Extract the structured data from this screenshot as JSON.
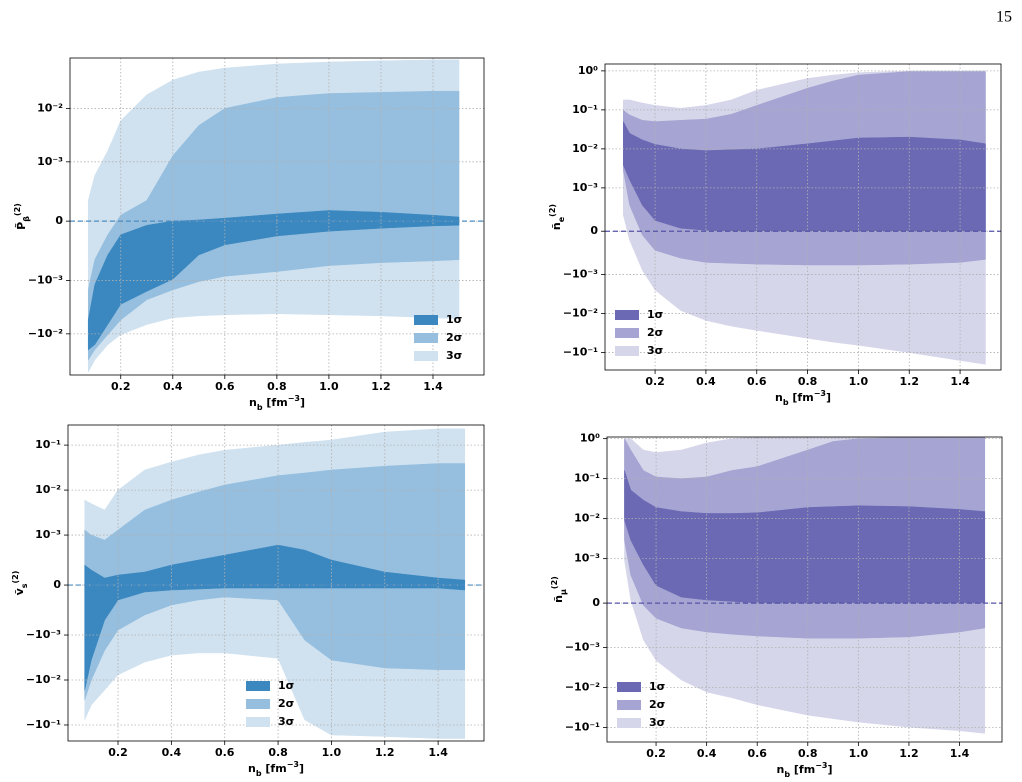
{
  "page_number": "15",
  "chart_data": [
    {
      "type": "band",
      "ylabel": [
        {
          "t": "P̃"
        },
        {
          "t": "β",
          "pos": "sub"
        },
        {
          "t": "(2)",
          "pos": "sup"
        }
      ],
      "xlabel": [
        {
          "t": "n"
        },
        {
          "t": "b",
          "pos": "sub"
        },
        {
          "t": " [fm"
        },
        {
          "t": "−3",
          "pos": "sup"
        },
        {
          "t": "]"
        }
      ],
      "x": [
        0.075,
        0.1,
        0.15,
        0.2,
        0.3,
        0.4,
        0.5,
        0.6,
        0.8,
        0.9,
        1.0,
        1.2,
        1.4,
        1.5
      ],
      "series": [
        {
          "name": "3σ",
          "color": "#d0e2f0",
          "upper": [
            0.00035,
            0.00077,
            0.0016,
            0.0059,
            0.018,
            0.034,
            0.048,
            0.057,
            0.068,
            0.071,
            0.074,
            0.078,
            0.081,
            0.081
          ],
          "lower": [
            -0.052,
            -0.031,
            -0.016,
            -0.0104,
            -0.0067,
            -0.005,
            -0.0046,
            -0.0044,
            -0.0042,
            -0.0043,
            -0.0044,
            -0.0046,
            -0.005,
            -0.0052
          ]
        },
        {
          "name": "2σ",
          "color": "#96bfdf",
          "upper": [
            -0.0015,
            -0.00065,
            -0.00023,
            0.0001,
            0.00035,
            0.0013,
            0.0048,
            0.01,
            0.016,
            0.0175,
            0.019,
            0.02,
            0.021,
            0.021
          ],
          "lower": [
            -0.031,
            -0.02,
            -0.0104,
            -0.0055,
            -0.0023,
            -0.0015,
            -0.00105,
            -0.00093,
            -0.00085,
            -0.0008,
            -0.00075,
            -0.0007,
            -0.00067,
            -0.00065
          ]
        },
        {
          "name": "1σ",
          "color": "#3b88c0",
          "upper": [
            -0.0055,
            -0.0012,
            -0.00057,
            -0.00023,
            -7e-05,
            0,
            2e-05,
            5e-05,
            0.00012,
            0.00015,
            0.00018,
            0.00015,
            0.0001,
            7e-05
          ],
          "lower": [
            -0.02,
            -0.016,
            -0.0067,
            -0.0028,
            -0.0016,
            -0.00098,
            -0.00057,
            -0.0004,
            -0.00025,
            -0.00021,
            -0.00017,
            -0.00012,
            -8e-05,
            -7e-05
          ]
        }
      ],
      "legend_order": [
        2,
        1,
        0
      ],
      "hline": {
        "value": 0,
        "color": "#4a8cc2"
      },
      "xlim": [
        0.005,
        1.596
      ],
      "ylim": [
        -0.059,
        0.088
      ],
      "xticks": [
        0.2,
        0.4,
        0.6,
        0.8,
        {
          "value": 1,
          "label": "1.0"
        },
        1.2,
        1.4
      ],
      "yticks": [
        {
          "value": -0.01,
          "label": "−10⁻²"
        },
        {
          "value": -0.001,
          "label": "−10⁻³"
        },
        0,
        {
          "value": 0.001,
          "label": "10⁻³"
        },
        {
          "value": 0.01,
          "label": "10⁻²"
        }
      ],
      "yscale": "symlog",
      "linthresh": 0.001,
      "linscale": 1,
      "grid": true,
      "legend": "lower right"
    },
    {
      "type": "band",
      "ylabel": [
        {
          "t": "ñ"
        },
        {
          "t": "e",
          "pos": "sub"
        },
        {
          "t": "(2)",
          "pos": "sup"
        }
      ],
      "xlabel": [
        {
          "t": "n"
        },
        {
          "t": "b",
          "pos": "sub"
        },
        {
          "t": " [fm"
        },
        {
          "t": "−3",
          "pos": "sup"
        },
        {
          "t": "]"
        }
      ],
      "x": [
        0.075,
        0.1,
        0.15,
        0.2,
        0.3,
        0.4,
        0.5,
        0.6,
        0.8,
        0.9,
        1.0,
        1.2,
        1.4,
        1.5
      ],
      "series": [
        {
          "name": "3σ",
          "color": "#d6d6eb",
          "upper": [
            0.18,
            0.18,
            0.15,
            0.13,
            0.11,
            0.13,
            0.18,
            0.32,
            0.64,
            0.78,
            0.9,
            1.0,
            1.0,
            1.0
          ],
          "lower": [
            0.00037,
            -0.00021,
            -0.0009,
            -0.0025,
            -0.0083,
            -0.015,
            -0.021,
            -0.027,
            -0.043,
            -0.054,
            -0.065,
            -0.1,
            -0.16,
            -0.2
          ]
        },
        {
          "name": "2σ",
          "color": "#a5a4d2",
          "upper": [
            0.098,
            0.074,
            0.054,
            0.05,
            0.054,
            0.058,
            0.077,
            0.13,
            0.36,
            0.55,
            0.78,
            0.96,
            0.96,
            0.96
          ],
          "lower": [
            0.0028,
            0.0006,
            -9e-05,
            -0.00044,
            -0.00062,
            -0.00072,
            -0.00074,
            -0.00076,
            -0.00078,
            -0.00078,
            -0.00078,
            -0.00076,
            -0.00072,
            -0.00065
          ]
        },
        {
          "name": "1σ",
          "color": "#6b69b3",
          "upper": [
            0.05,
            0.025,
            0.017,
            0.013,
            0.01,
            0.009,
            0.0095,
            0.01,
            0.0135,
            0.016,
            0.019,
            0.02,
            0.017,
            0.0135
          ],
          "lower": [
            0.0038,
            0.0016,
            0.0006,
            0.00025,
            7e-05,
            2e-05,
            0,
            0,
            0,
            0,
            0,
            0,
            0,
            0
          ]
        }
      ],
      "legend_order": [
        2,
        1,
        0
      ],
      "hline": {
        "value": 0,
        "color": "#5553a8"
      },
      "xlim": [
        0.003,
        1.561
      ],
      "ylim": [
        -0.28,
        1.5
      ],
      "xticks": [
        0.2,
        0.4,
        0.6,
        0.8,
        {
          "value": 1,
          "label": "1.0"
        },
        1.2,
        1.4
      ],
      "yticks": [
        {
          "value": -0.1,
          "label": "−10⁻¹"
        },
        {
          "value": -0.01,
          "label": "−10⁻²"
        },
        {
          "value": -0.001,
          "label": "−10⁻³"
        },
        0,
        {
          "value": 0.001,
          "label": "10⁻³"
        },
        {
          "value": 0.01,
          "label": "10⁻²"
        },
        {
          "value": 0.1,
          "label": "10⁻¹"
        },
        {
          "value": 1,
          "label": "10⁰"
        }
      ],
      "yscale": "symlog",
      "linthresh": 0.001,
      "linscale": 1,
      "grid": true,
      "legend": "lower left"
    },
    {
      "type": "band",
      "ylabel": [
        {
          "t": "ṽ"
        },
        {
          "t": "s",
          "pos": "sub"
        },
        {
          "t": "(2)",
          "pos": "sup"
        }
      ],
      "xlabel": [
        {
          "t": "n"
        },
        {
          "t": "b",
          "pos": "sub"
        },
        {
          "t": " [fm"
        },
        {
          "t": "−3",
          "pos": "sup"
        },
        {
          "t": "]"
        }
      ],
      "x": [
        0.075,
        0.1,
        0.15,
        0.2,
        0.3,
        0.4,
        0.5,
        0.6,
        0.8,
        0.9,
        1.0,
        1.2,
        1.4,
        1.5
      ],
      "series": [
        {
          "name": "3σ",
          "color": "#d0e2f0",
          "upper": [
            0.006,
            0.005,
            0.0036,
            0.01,
            0.028,
            0.042,
            0.06,
            0.077,
            0.1,
            0.115,
            0.13,
            0.195,
            0.23,
            0.23
          ],
          "lower": [
            -0.077,
            -0.036,
            -0.0167,
            -0.0077,
            -0.004,
            -0.0028,
            -0.0025,
            -0.0025,
            -0.0033,
            -0.077,
            -0.167,
            -0.18,
            -0.2,
            -0.2
          ]
        },
        {
          "name": "2σ",
          "color": "#96bfdf",
          "upper": [
            0.0013,
            0.001,
            0.0009,
            0.0013,
            0.0036,
            0.006,
            0.009,
            0.013,
            0.021,
            0.024,
            0.028,
            0.034,
            0.039,
            0.039
          ],
          "lower": [
            -0.028,
            -0.01,
            -0.0022,
            -0.0009,
            -0.0006,
            -0.0004,
            -0.0003,
            -0.00024,
            -0.0003,
            -0.0013,
            -0.0036,
            -0.0054,
            -0.0059,
            -0.0059
          ]
        },
        {
          "name": "1σ",
          "color": "#3b88c0",
          "upper": [
            0.0004,
            0.0003,
            0.00014,
            0.0002,
            0.00026,
            0.0004,
            0.0005,
            0.0006,
            0.0008,
            0.0007,
            0.0005,
            0.00026,
            0.00014,
            0.0001
          ],
          "lower": [
            -0.017,
            -0.0036,
            -0.0007,
            -0.0003,
            -0.00014,
            -0.0001,
            -8e-05,
            -6e-05,
            -6e-05,
            -6e-05,
            -6e-05,
            -6e-05,
            -6e-05,
            -0.0001
          ]
        }
      ],
      "legend_order": [
        2,
        1,
        0
      ],
      "hline": {
        "value": 0,
        "color": "#4a8cc2"
      },
      "xlim": [
        0.0125,
        1.572
      ],
      "ylim": [
        -0.227,
        0.28
      ],
      "xticks": [
        0.2,
        0.4,
        0.6,
        0.8,
        {
          "value": 1,
          "label": "1.0"
        },
        1.2,
        1.4
      ],
      "yticks": [
        {
          "value": -0.1,
          "label": "−10⁻¹"
        },
        {
          "value": -0.01,
          "label": "−10⁻²"
        },
        {
          "value": -0.001,
          "label": "−10⁻³"
        },
        0,
        {
          "value": 0.001,
          "label": "10⁻³"
        },
        {
          "value": 0.01,
          "label": "10⁻²"
        },
        {
          "value": 0.1,
          "label": "10⁻¹"
        }
      ],
      "yscale": "symlog",
      "linthresh": 0.001,
      "linscale": 1,
      "grid": true,
      "legend": "lower center"
    },
    {
      "type": "band",
      "ylabel": [
        {
          "t": "ñ"
        },
        {
          "t": "μ",
          "pos": "sub"
        },
        {
          "t": "(2)",
          "pos": "sup"
        }
      ],
      "xlabel": [
        {
          "t": "n"
        },
        {
          "t": "b",
          "pos": "sub"
        },
        {
          "t": " [fm"
        },
        {
          "t": "−3",
          "pos": "sup"
        },
        {
          "t": "]"
        }
      ],
      "x": [
        0.075,
        0.1,
        0.15,
        0.2,
        0.3,
        0.4,
        0.5,
        0.6,
        0.8,
        0.9,
        1.0,
        1.2,
        1.4,
        1.5
      ],
      "series": [
        {
          "name": "3σ",
          "color": "#d6d6eb",
          "upper": [
            1.0,
            1.0,
            0.52,
            0.45,
            0.52,
            0.78,
            1.0,
            1.1,
            1.1,
            1.1,
            1.1,
            1.1,
            1.1,
            1.1
          ],
          "lower": [
            0.00097,
            7e-05,
            -0.00083,
            -0.0021,
            -0.0065,
            -0.013,
            -0.018,
            -0.027,
            -0.049,
            -0.06,
            -0.073,
            -0.098,
            -0.12,
            -0.14
          ]
        },
        {
          "name": "2σ",
          "color": "#a5a4d2",
          "upper": [
            1.0,
            0.52,
            0.16,
            0.11,
            0.1,
            0.11,
            0.16,
            0.2,
            0.52,
            0.85,
            1.0,
            1.1,
            1.1,
            1.1
          ],
          "lower": [
            0.0029,
            0.00063,
            -5e-05,
            -0.00034,
            -0.00056,
            -0.00065,
            -0.0007,
            -0.00074,
            -0.00079,
            -0.00079,
            -0.00079,
            -0.00076,
            -0.00065,
            -0.00056
          ]
        },
        {
          "name": "1σ",
          "color": "#6b69b3",
          "upper": [
            0.16,
            0.052,
            0.029,
            0.019,
            0.015,
            0.0135,
            0.0135,
            0.014,
            0.019,
            0.02,
            0.021,
            0.02,
            0.017,
            0.015
          ],
          "lower": [
            0.0092,
            0.0029,
            0.00086,
            0.0004,
            0.000135,
            7e-05,
            4e-05,
            0,
            0,
            0,
            0,
            0,
            0,
            0
          ]
        }
      ],
      "legend_order": [
        2,
        1,
        0
      ],
      "hline": {
        "value": 0,
        "color": "#5553a8"
      },
      "xlim": [
        0.006,
        1.568
      ],
      "ylim": [
        -0.23,
        1.1
      ],
      "xticks": [
        0.2,
        0.4,
        0.6,
        0.8,
        {
          "value": 1,
          "label": "1.0"
        },
        1.2,
        1.4
      ],
      "yticks": [
        {
          "value": -0.1,
          "label": "−10⁻¹"
        },
        {
          "value": -0.01,
          "label": "−10⁻²"
        },
        {
          "value": -0.001,
          "label": "−10⁻³"
        },
        0,
        {
          "value": 0.001,
          "label": "10⁻³"
        },
        {
          "value": 0.01,
          "label": "10⁻²"
        },
        {
          "value": 0.1,
          "label": "10⁻¹"
        },
        {
          "value": 1,
          "label": "10⁰"
        }
      ],
      "yscale": "symlog",
      "linthresh": 0.001,
      "linscale": 1,
      "grid": true,
      "legend": "lower left"
    }
  ]
}
